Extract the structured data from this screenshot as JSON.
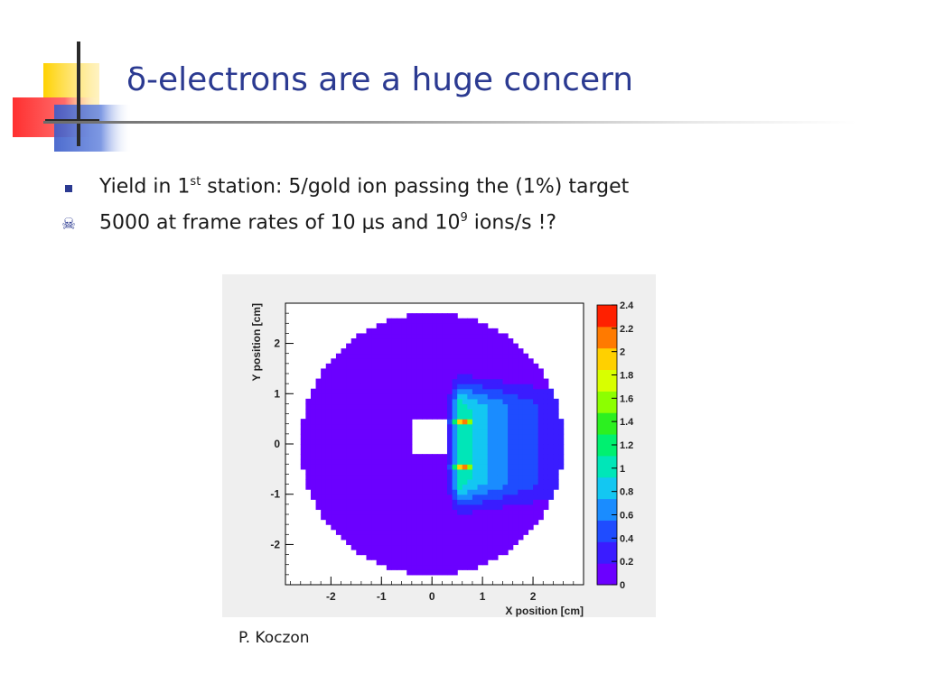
{
  "slide": {
    "title": "δ-electrons are a huge concern",
    "bullets": [
      {
        "pre": "Yield in 1",
        "sup": "st",
        "post": " station: 5/gold ion passing the (1%) target"
      },
      {
        "pre": "5000 at frame rates of 10 μs and 10",
        "sup": "9",
        "post": " ions/s !?"
      }
    ],
    "credit": "P. Koczon",
    "colors": {
      "title": "#2b3a91",
      "accent_yellow": "#ffd200",
      "accent_red": "#ff3b30",
      "accent_blue": "#3a5cc9"
    }
  },
  "chart_data": {
    "type": "heatmap",
    "title": "",
    "xlabel": "X position [cm]",
    "ylabel": "Y position [cm]",
    "xlim": [
      -2.9,
      3.0
    ],
    "ylim": [
      -2.8,
      2.8
    ],
    "x_ticks": [
      -2,
      -1,
      0,
      1,
      2
    ],
    "y_ticks": [
      -2,
      -1,
      0,
      1,
      2
    ],
    "colorbar": {
      "min": 0,
      "max": 2.4,
      "ticks": [
        "0",
        "0.2",
        "0.4",
        "0.6",
        "0.8",
        "1",
        "1.2",
        "1.4",
        "1.6",
        "1.8",
        "2",
        "2.2",
        "2.4"
      ],
      "palette": [
        "#6b00ff",
        "#3a1cff",
        "#1f4cff",
        "#1a8cff",
        "#13c7f2",
        "#00e6b8",
        "#00f070",
        "#2cf020",
        "#8cff00",
        "#d8ff00",
        "#ffd000",
        "#ff7a00",
        "#ff2000"
      ]
    },
    "detector": {
      "outer_radius_cm": 2.6,
      "beam_hole": {
        "x": 0.0,
        "y": 0.15,
        "half_width": 0.35,
        "half_height": 0.35
      }
    },
    "hotspots": [
      {
        "x": 0.62,
        "y": 0.45,
        "value": 2.2
      },
      {
        "x": 0.62,
        "y": -0.45,
        "value": 2.2
      }
    ]
  }
}
